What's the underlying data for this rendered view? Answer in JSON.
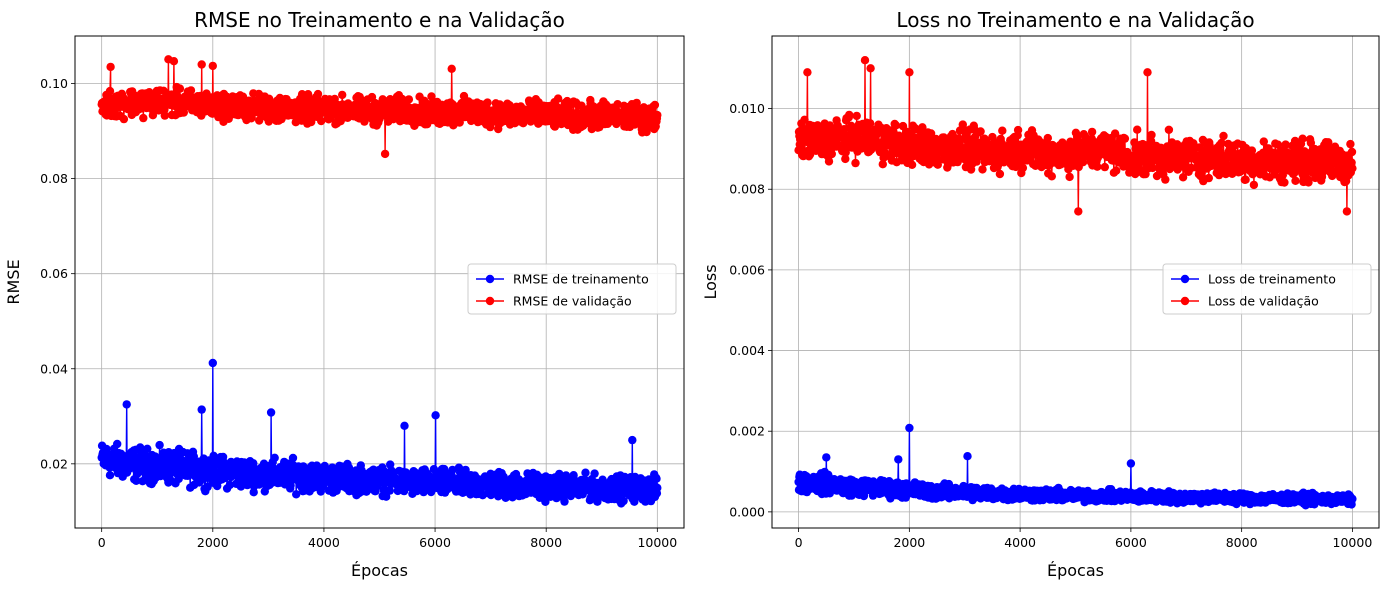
{
  "chart_data": [
    {
      "type": "line",
      "title": "RMSE no Treinamento e na Validação",
      "xlabel": "Épocas",
      "ylabel": "RMSE",
      "xlim": [
        -480,
        10480
      ],
      "ylim": [
        0.0065,
        0.11
      ],
      "xticks": [
        0,
        2000,
        4000,
        6000,
        8000,
        10000
      ],
      "xtick_labels": [
        "0",
        "2000",
        "4000",
        "6000",
        "8000",
        "10000"
      ],
      "yticks": [
        0.02,
        0.04,
        0.06,
        0.08,
        0.1
      ],
      "ytick_labels": [
        "0.02",
        "0.04",
        "0.06",
        "0.08",
        "0.10"
      ],
      "grid": true,
      "legend_position": "center-right",
      "series": [
        {
          "name": "RMSE de treinamento",
          "color": "#0000ff",
          "marker": "circle",
          "x": [
            0,
            500,
            1000,
            1500,
            2000,
            2500,
            3000,
            3500,
            4000,
            4500,
            5000,
            5500,
            6000,
            6500,
            7000,
            7500,
            8000,
            8500,
            9000,
            9500,
            10000
          ],
          "values": [
            0.021,
            0.02,
            0.0195,
            0.019,
            0.0185,
            0.018,
            0.0178,
            0.0175,
            0.017,
            0.0168,
            0.0165,
            0.0162,
            0.016,
            0.0158,
            0.0156,
            0.0154,
            0.0152,
            0.015,
            0.0149,
            0.0148,
            0.0147
          ],
          "band": [
            0.005,
            0.005,
            0.005,
            0.005,
            0.0045,
            0.0045,
            0.0045,
            0.0045,
            0.0042,
            0.0042,
            0.004,
            0.004,
            0.004,
            0.004,
            0.004,
            0.004,
            0.0038,
            0.0038,
            0.0037,
            0.0037,
            0.0037
          ],
          "spikes": [
            [
              2000,
              0.0412
            ],
            [
              3050,
              0.0308
            ],
            [
              6010,
              0.0302
            ],
            [
              450,
              0.0325
            ],
            [
              1800,
              0.0314
            ],
            [
              9550,
              0.025
            ],
            [
              5450,
              0.028
            ]
          ]
        },
        {
          "name": "RMSE de validação",
          "color": "#ff0000",
          "marker": "circle",
          "x": [
            0,
            500,
            1000,
            1500,
            2000,
            2500,
            3000,
            3500,
            4000,
            4500,
            5000,
            5500,
            6000,
            6500,
            7000,
            7500,
            8000,
            8500,
            9000,
            9500,
            10000
          ],
          "values": [
            0.0955,
            0.096,
            0.0962,
            0.0958,
            0.0955,
            0.095,
            0.0948,
            0.0945,
            0.0946,
            0.0944,
            0.0942,
            0.0945,
            0.0938,
            0.094,
            0.0938,
            0.0935,
            0.0935,
            0.0932,
            0.0932,
            0.093,
            0.0928
          ],
          "band": [
            0.004,
            0.004,
            0.004,
            0.004,
            0.004,
            0.004,
            0.004,
            0.004,
            0.004,
            0.004,
            0.004,
            0.004,
            0.004,
            0.004,
            0.004,
            0.004,
            0.004,
            0.004,
            0.004,
            0.004,
            0.004
          ],
          "spikes": [
            [
              160,
              0.1035
            ],
            [
              1200,
              0.1051
            ],
            [
              1300,
              0.1047
            ],
            [
              1800,
              0.104
            ],
            [
              2000,
              0.1037
            ],
            [
              5100,
              0.0852
            ],
            [
              6300,
              0.1031
            ]
          ]
        }
      ]
    },
    {
      "type": "line",
      "title": "Loss no Treinamento e na Validação",
      "xlabel": "Épocas",
      "ylabel": "Loss",
      "xlim": [
        -480,
        10480
      ],
      "ylim": [
        -0.0004,
        0.0118
      ],
      "xticks": [
        0,
        2000,
        4000,
        6000,
        8000,
        10000
      ],
      "xtick_labels": [
        "0",
        "2000",
        "4000",
        "6000",
        "8000",
        "10000"
      ],
      "yticks": [
        0.0,
        0.002,
        0.004,
        0.006,
        0.008,
        0.01
      ],
      "ytick_labels": [
        "0.000",
        "0.002",
        "0.004",
        "0.006",
        "0.008",
        "0.010"
      ],
      "grid": true,
      "legend_position": "center-right",
      "series": [
        {
          "name": "Loss de treinamento",
          "color": "#0000ff",
          "marker": "circle",
          "x": [
            0,
            500,
            1000,
            1500,
            2000,
            2500,
            3000,
            3500,
            4000,
            4500,
            5000,
            5500,
            6000,
            6500,
            7000,
            7500,
            8000,
            8500,
            9000,
            9500,
            10000
          ],
          "values": [
            0.00075,
            0.0007,
            0.00062,
            0.00058,
            0.00055,
            0.0005,
            0.00048,
            0.00046,
            0.00044,
            0.00042,
            0.0004,
            0.00039,
            0.00038,
            0.00037,
            0.00036,
            0.00035,
            0.00034,
            0.00033,
            0.00032,
            0.00031,
            0.0003
          ],
          "band": [
            0.00035,
            0.00035,
            0.0003,
            0.0003,
            0.00028,
            0.00026,
            0.00025,
            0.00024,
            0.00023,
            0.00022,
            0.00021,
            0.0002,
            0.0002,
            0.0002,
            0.0002,
            0.00019,
            0.00019,
            0.00018,
            0.00018,
            0.00017,
            0.00017
          ],
          "spikes": [
            [
              2000,
              0.00208
            ],
            [
              3050,
              0.00138
            ],
            [
              6000,
              0.0012
            ],
            [
              1800,
              0.0013
            ],
            [
              500,
              0.00135
            ]
          ]
        },
        {
          "name": "Loss de validação",
          "color": "#ff0000",
          "marker": "circle",
          "x": [
            0,
            500,
            1000,
            1500,
            2000,
            2500,
            3000,
            3500,
            4000,
            4500,
            5000,
            5500,
            6000,
            6500,
            7000,
            7500,
            8000,
            8500,
            9000,
            9500,
            10000
          ],
          "values": [
            0.0092,
            0.0092,
            0.0093,
            0.0092,
            0.0091,
            0.009,
            0.009,
            0.0089,
            0.009,
            0.0089,
            0.0089,
            0.009,
            0.0088,
            0.0088,
            0.0088,
            0.0088,
            0.0087,
            0.0087,
            0.0087,
            0.0087,
            0.0086
          ],
          "band": [
            0.0007,
            0.0007,
            0.0007,
            0.0007,
            0.0007,
            0.0007,
            0.0007,
            0.0007,
            0.0007,
            0.0007,
            0.0007,
            0.0007,
            0.0007,
            0.0007,
            0.0007,
            0.0007,
            0.0007,
            0.0007,
            0.0007,
            0.0007,
            0.0007
          ],
          "spikes": [
            [
              160,
              0.0109
            ],
            [
              1200,
              0.0112
            ],
            [
              1300,
              0.011
            ],
            [
              2000,
              0.0109
            ],
            [
              5050,
              0.00745
            ],
            [
              6300,
              0.0109
            ],
            [
              9900,
              0.00745
            ]
          ]
        }
      ]
    }
  ]
}
